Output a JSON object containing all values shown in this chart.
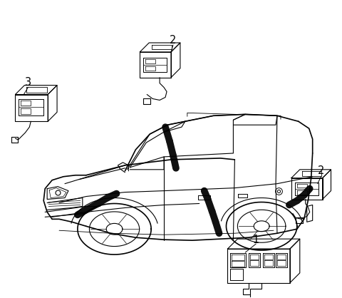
{
  "background_color": "#ffffff",
  "line_color": "#000000",
  "figsize": [
    4.8,
    4.18
  ],
  "dpi": 100
}
